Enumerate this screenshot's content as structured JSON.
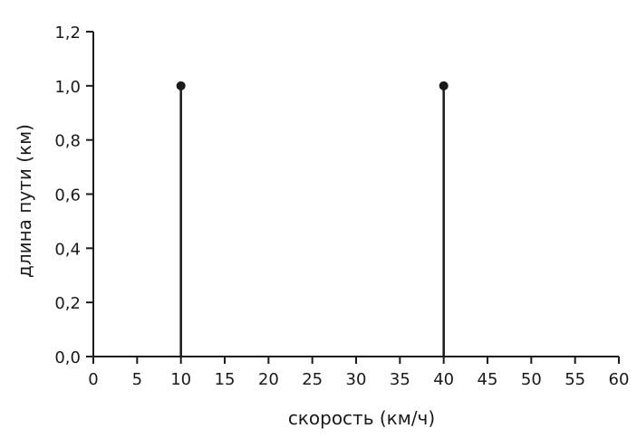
{
  "chart_data": {
    "type": "stem",
    "xlabel": "скорость (км/ч)",
    "ylabel": "длина пути (км)",
    "xlim": [
      0,
      60
    ],
    "ylim": [
      0,
      1.2
    ],
    "x_ticks": [
      0,
      5,
      10,
      15,
      20,
      25,
      30,
      35,
      40,
      45,
      50,
      55,
      60
    ],
    "x_tick_labels": [
      "0",
      "5",
      "10",
      "15",
      "20",
      "25",
      "30",
      "35",
      "40",
      "45",
      "50",
      "55",
      "60"
    ],
    "y_ticks": [
      0,
      0.2,
      0.4,
      0.6,
      0.8,
      1.0,
      1.2
    ],
    "y_tick_labels": [
      "0,0",
      "0,2",
      "0,4",
      "0,6",
      "0,8",
      "1,0",
      "1,2"
    ],
    "grid": false,
    "points": [
      {
        "x": 10,
        "y": 1.0
      },
      {
        "x": 40,
        "y": 1.0
      }
    ],
    "colors": {
      "axis": "#1a1a1a",
      "stem": "#1a1a1a",
      "marker": "#1a1a1a"
    }
  }
}
